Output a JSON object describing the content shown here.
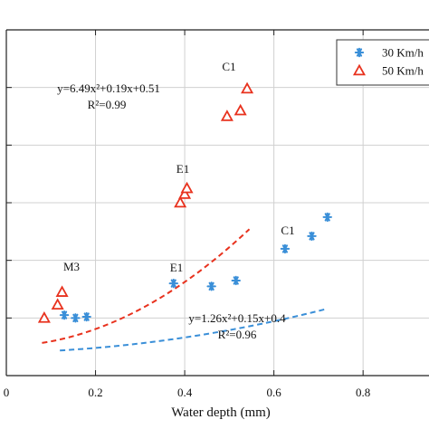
{
  "chart_data": {
    "type": "scatter",
    "xlabel": "Water depth (mm)",
    "xticks": [
      "0",
      "0.2",
      "0.4",
      "0.6",
      "0.8"
    ],
    "xlim": [
      0,
      0.96
    ],
    "ylim": [
      0,
      6
    ],
    "grid": true,
    "legend_position": "top-right",
    "series": [
      {
        "name": "30 Km/h",
        "marker": "asterisk",
        "color": "#3a8fd8",
        "x": [
          0.13,
          0.155,
          0.18,
          0.375,
          0.46,
          0.515,
          0.625,
          0.685,
          0.72
        ],
        "y": [
          1.05,
          1.0,
          1.02,
          1.6,
          1.55,
          1.65,
          2.2,
          2.42,
          2.75
        ],
        "fit": {
          "a": 1.26,
          "b": 0.15,
          "c": 0.4,
          "x_range": [
            0.12,
            0.72
          ],
          "style": "dashed"
        }
      },
      {
        "name": "50 Km/h",
        "marker": "triangle",
        "color": "#e8321e",
        "x": [
          0.085,
          0.115,
          0.125,
          0.39,
          0.4,
          0.405,
          0.495,
          0.525,
          0.54
        ],
        "y": [
          1.0,
          1.23,
          1.45,
          3.0,
          3.15,
          3.25,
          4.5,
          4.6,
          4.98
        ],
        "fit": {
          "a": 6.49,
          "b": 0.19,
          "c": 0.51,
          "x_range": [
            0.08,
            0.545
          ],
          "style": "dashed"
        }
      }
    ],
    "annotations": [
      {
        "key": "eq50",
        "lines": [
          "y=6.49x²+0.19x+0.51",
          "R²=0.99"
        ]
      },
      {
        "key": "eq30",
        "lines": [
          "y=1.26x²+0.15x+0.4",
          "R²=0.96"
        ]
      },
      {
        "key": "c1_50",
        "lines": [
          "C1"
        ]
      },
      {
        "key": "e1_50",
        "lines": [
          "E1"
        ]
      },
      {
        "key": "m3",
        "lines": [
          "M3"
        ]
      },
      {
        "key": "e1_30",
        "lines": [
          "E1"
        ]
      },
      {
        "key": "c1_30",
        "lines": [
          "C1"
        ]
      }
    ]
  }
}
